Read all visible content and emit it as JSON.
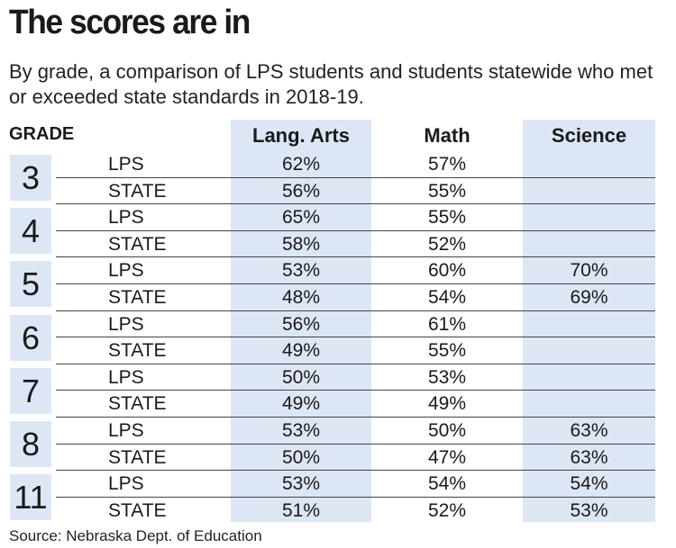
{
  "chart_data": {
    "type": "table",
    "title": "The scores are in",
    "subtitle": "By grade, a comparison of LPS students and students statewide who met or exceeded state standards in 2018-19.",
    "columns": [
      "GRADE",
      "",
      "Lang. Arts",
      "Math",
      "Science"
    ],
    "rows": [
      {
        "grade": "3",
        "lps": {
          "lang": "62%",
          "math": "57%",
          "sci": ""
        },
        "state": {
          "lang": "56%",
          "math": "55%",
          "sci": ""
        }
      },
      {
        "grade": "4",
        "lps": {
          "lang": "65%",
          "math": "55%",
          "sci": ""
        },
        "state": {
          "lang": "58%",
          "math": "52%",
          "sci": ""
        }
      },
      {
        "grade": "5",
        "lps": {
          "lang": "53%",
          "math": "60%",
          "sci": "70%"
        },
        "state": {
          "lang": "48%",
          "math": "54%",
          "sci": "69%"
        }
      },
      {
        "grade": "6",
        "lps": {
          "lang": "56%",
          "math": "61%",
          "sci": ""
        },
        "state": {
          "lang": "49%",
          "math": "55%",
          "sci": ""
        }
      },
      {
        "grade": "7",
        "lps": {
          "lang": "50%",
          "math": "53%",
          "sci": ""
        },
        "state": {
          "lang": "49%",
          "math": "49%",
          "sci": ""
        }
      },
      {
        "grade": "8",
        "lps": {
          "lang": "53%",
          "math": "50%",
          "sci": "63%"
        },
        "state": {
          "lang": "50%",
          "math": "47%",
          "sci": "63%"
        }
      },
      {
        "grade": "11",
        "lps": {
          "lang": "53%",
          "math": "54%",
          "sci": "54%"
        },
        "state": {
          "lang": "51%",
          "math": "52%",
          "sci": "53%"
        }
      }
    ],
    "row_labels": {
      "lps": "LPS",
      "state": "STATE"
    },
    "source": "Source: Nebraska Dept. of Education"
  },
  "colors": {
    "band": "#dde6f5",
    "text": "#1a1a1a",
    "rule": "#444444"
  }
}
